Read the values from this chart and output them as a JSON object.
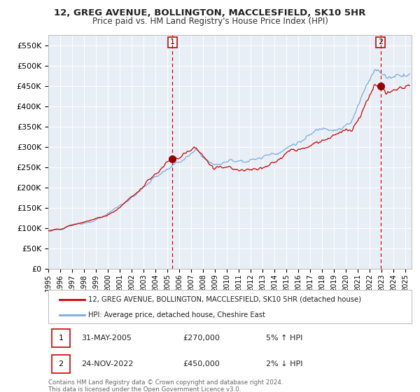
{
  "title": "12, GREG AVENUE, BOLLINGTON, MACCLESFIELD, SK10 5HR",
  "subtitle": "Price paid vs. HM Land Registry's House Price Index (HPI)",
  "legend_line1": "12, GREG AVENUE, BOLLINGTON, MACCLESFIELD, SK10 5HR (detached house)",
  "legend_line2": "HPI: Average price, detached house, Cheshire East",
  "annotation1": {
    "num": "1",
    "date": "31-MAY-2005",
    "price": "£270,000",
    "hpi": "5% ↑ HPI",
    "x_year": 2005.42,
    "y_val": 270000
  },
  "annotation2": {
    "num": "2",
    "date": "24-NOV-2022",
    "price": "£450,000",
    "hpi": "2% ↓ HPI",
    "x_year": 2022.9,
    "y_val": 450000
  },
  "footer": "Contains HM Land Registry data © Crown copyright and database right 2024.\nThis data is licensed under the Open Government Licence v3.0.",
  "ylim": [
    0,
    575000
  ],
  "xlim_start": 1995.0,
  "xlim_end": 2025.5,
  "plot_bg": "#e8eef5",
  "red_line_color": "#cc0000",
  "blue_line_color": "#7aabe0",
  "grid_color": "#ffffff",
  "vline_color": "#cc0000",
  "marker_color": "#990000",
  "yticks": [
    0,
    50000,
    100000,
    150000,
    200000,
    250000,
    300000,
    350000,
    400000,
    450000,
    500000,
    550000
  ],
  "ytick_labels": [
    "£0",
    "£50K",
    "£100K",
    "£150K",
    "£200K",
    "£250K",
    "£300K",
    "£350K",
    "£400K",
    "£450K",
    "£500K",
    "£550K"
  ]
}
